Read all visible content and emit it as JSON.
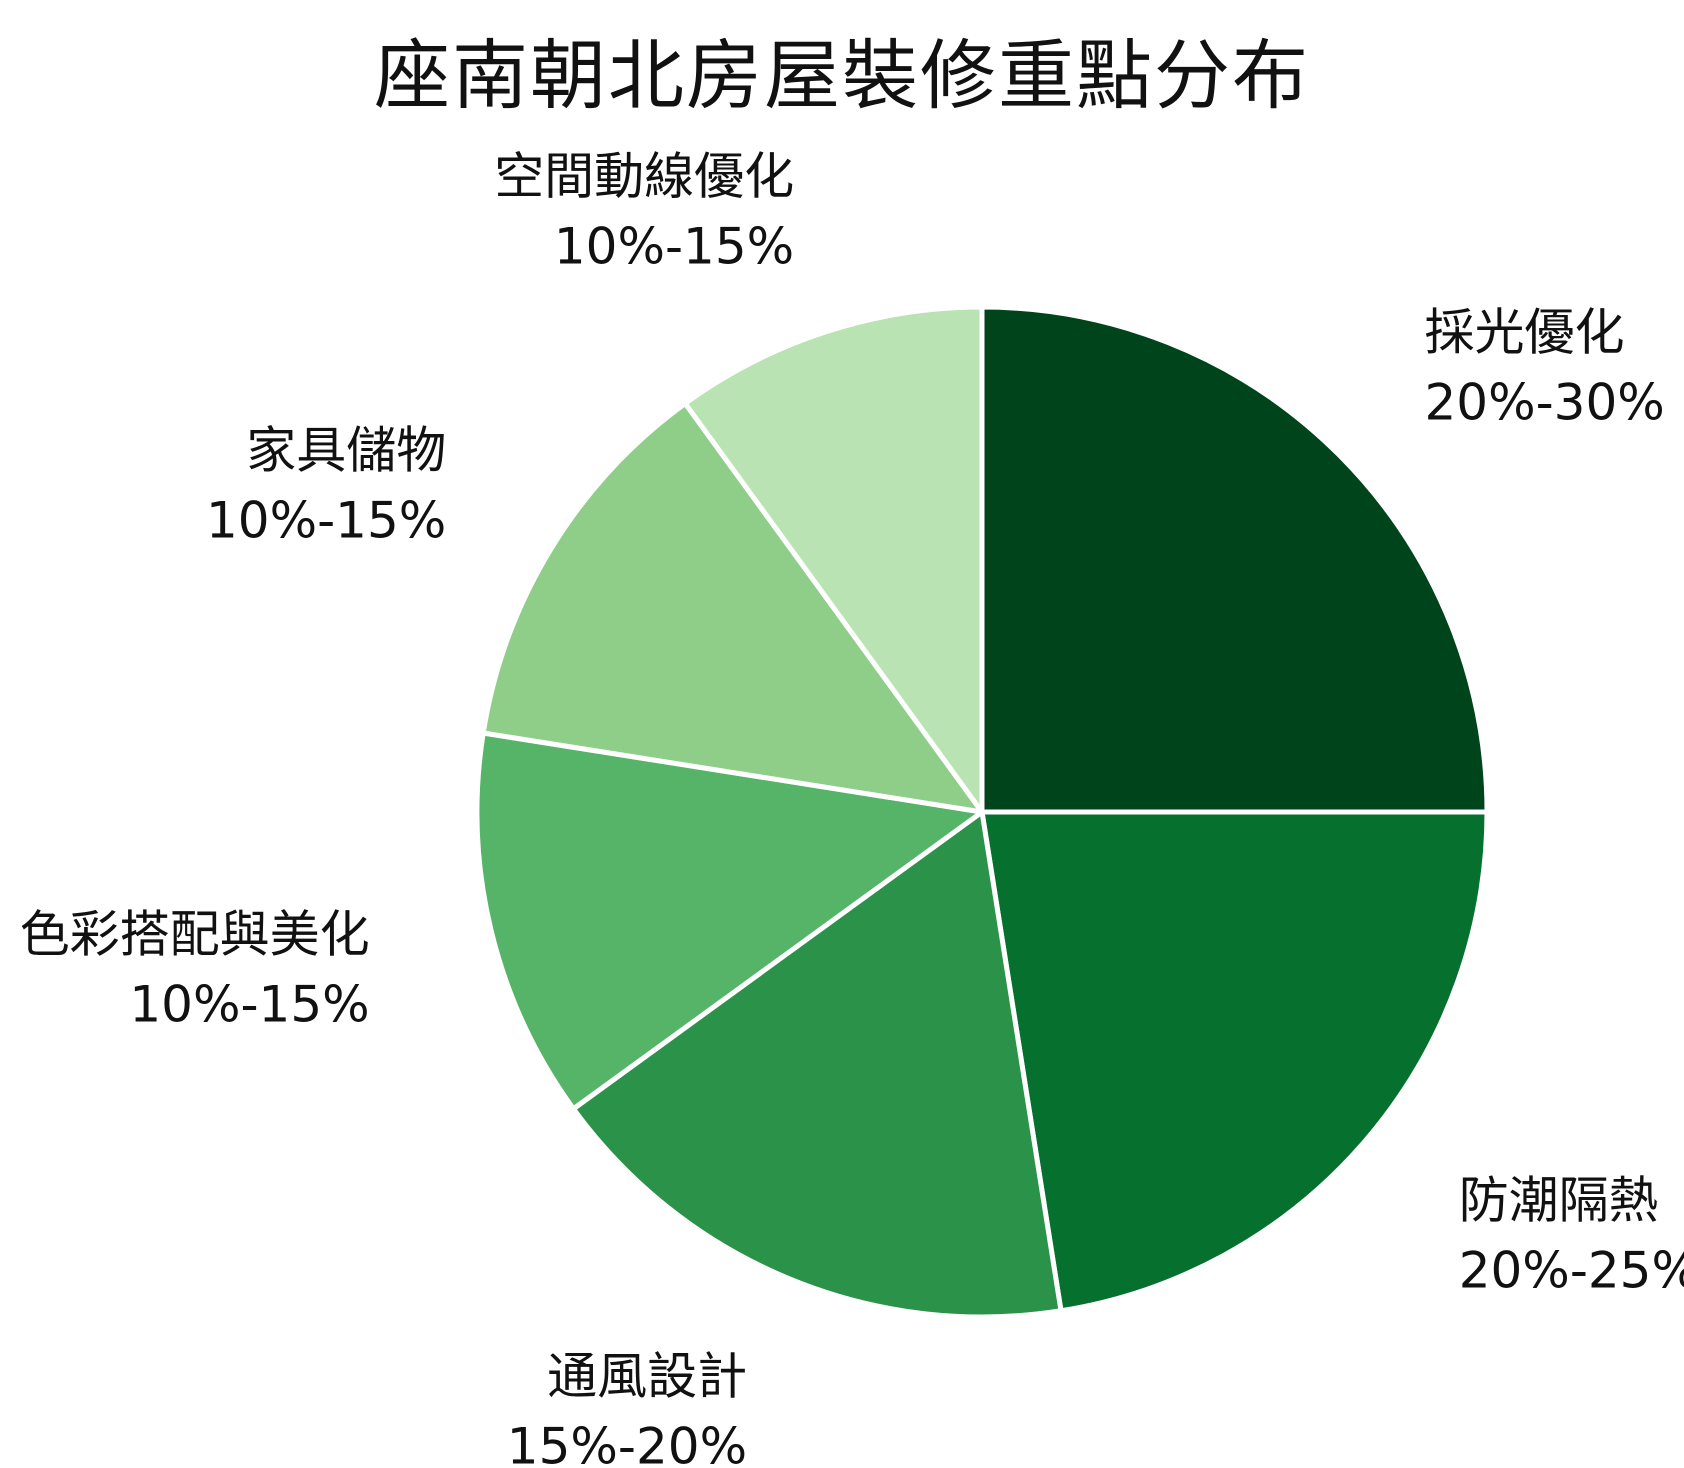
{
  "chart_data": {
    "type": "pie",
    "title": "座南朝北房屋裝修重點分布",
    "start_angle": "90° (12 o'clock)",
    "direction": "clockwise",
    "slice_border_color": "#ffffff",
    "slices": [
      {
        "name": "採光優化",
        "range_label": "20%-30%",
        "value": 25.0,
        "color": "#00441b"
      },
      {
        "name": "防潮隔熱",
        "range_label": "20%-25%",
        "value": 22.5,
        "color": "#06702f"
      },
      {
        "name": "通風設計",
        "range_label": "15%-20%",
        "value": 17.5,
        "color": "#2b924a"
      },
      {
        "name": "色彩搭配與美化",
        "range_label": "10%-15%",
        "value": 12.5,
        "color": "#55b468"
      },
      {
        "name": "家具儲物",
        "range_label": "10%-15%",
        "value": 12.5,
        "color": "#8ece88"
      },
      {
        "name": "空間動線優化",
        "range_label": "10%-15%",
        "value": 10.0,
        "color": "#b9e3b2"
      }
    ]
  }
}
